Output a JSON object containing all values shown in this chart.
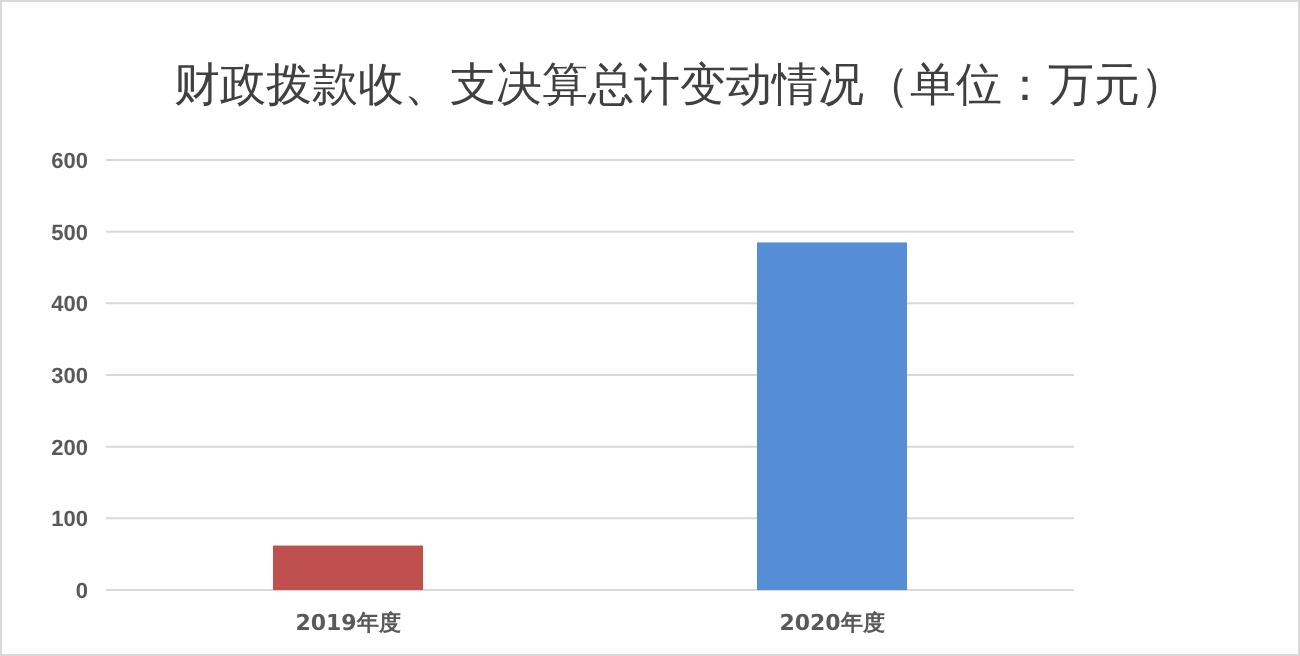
{
  "chart_data": {
    "type": "bar",
    "title": "财政拨款收、支决算总计变动情况（单位：万元）",
    "categories": [
      "2019年度",
      "2020年度"
    ],
    "values": [
      62,
      485
    ],
    "colors": [
      "#c0504d",
      "#558ed5"
    ],
    "ylim": [
      0,
      600
    ],
    "yticks": [
      0,
      100,
      200,
      300,
      400,
      500,
      600
    ],
    "grid": "y"
  }
}
